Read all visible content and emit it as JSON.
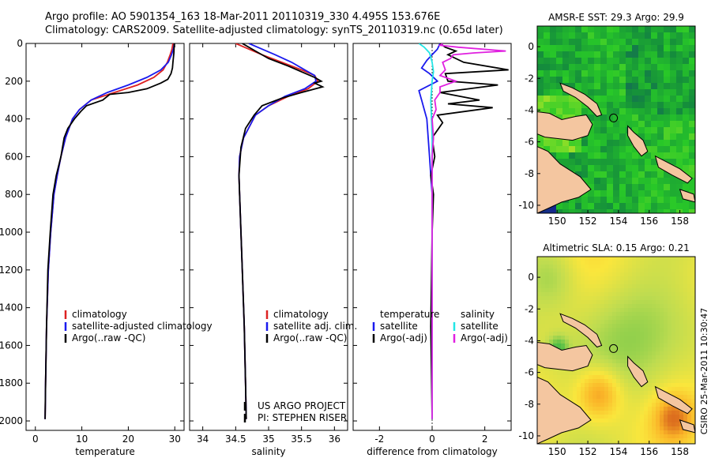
{
  "header": {
    "line1": "Argo profile: AO 5901354_163 18-Mar-2011 20110319_330 4.495S 153.676E",
    "line2": "Climatology: CARS2009. Satellite-adjusted climatology: synTS_20110319.nc (0.65d later)"
  },
  "colors": {
    "climatology": "#dd2222",
    "satellite": "#1a1aee",
    "argo": "#000000",
    "sat_diff_salinity": "#22e6e6",
    "argo_diff_salinity": "#e020e0",
    "land": "#f4c6a0"
  },
  "chart_data": [
    {
      "type": "line",
      "xlabel": "temperature",
      "xlim": [
        -2,
        32
      ],
      "ylim": [
        2050,
        0
      ],
      "xticks": [
        0,
        10,
        20,
        30
      ],
      "yticks": [
        0,
        200,
        400,
        600,
        800,
        1000,
        1200,
        1400,
        1600,
        1800,
        2000
      ],
      "legend": [
        "climatology",
        "satellite-adjusted climatology",
        "Argo(..raw -QC)"
      ],
      "series": [
        {
          "name": "climatology",
          "color": "#dd2222",
          "x": [
            29.6,
            29.4,
            29.0,
            28.4,
            27.5,
            25.5,
            22.0,
            17.0,
            12.0,
            9.5,
            8.0,
            6.5,
            5.5,
            4.7,
            4.0,
            3.3,
            2.8,
            2.4,
            2.2,
            2.1
          ],
          "y": [
            0,
            30,
            60,
            100,
            140,
            180,
            220,
            260,
            300,
            350,
            400,
            500,
            600,
            700,
            800,
            1000,
            1200,
            1500,
            1800,
            1990
          ]
        },
        {
          "name": "satellite-adjusted climatology",
          "color": "#1a1aee",
          "x": [
            29.9,
            29.7,
            29.3,
            28.6,
            27.0,
            24.0,
            20.0,
            15.5,
            12.0,
            9.5,
            8.0,
            6.5,
            5.5,
            4.7,
            4.0,
            3.3,
            2.8,
            2.4,
            2.2,
            2.1
          ],
          "y": [
            0,
            30,
            60,
            100,
            140,
            180,
            220,
            260,
            300,
            350,
            400,
            500,
            600,
            700,
            800,
            1000,
            1200,
            1500,
            1800,
            1990
          ]
        },
        {
          "name": "Argo(..raw -QC)",
          "color": "#000000",
          "x": [
            29.9,
            29.8,
            29.6,
            29.5,
            29.2,
            28.5,
            27.0,
            24.0,
            20.0,
            16.0,
            14.5,
            11.0,
            9.8,
            8.4,
            7.0,
            6.2,
            5.5,
            4.5,
            3.8,
            3.2,
            2.7,
            2.4,
            2.2,
            2.1
          ],
          "y": [
            0,
            50,
            100,
            130,
            160,
            190,
            210,
            240,
            260,
            270,
            300,
            330,
            360,
            400,
            450,
            500,
            600,
            700,
            800,
            1000,
            1200,
            1500,
            1800,
            1990
          ]
        }
      ]
    },
    {
      "type": "line",
      "xlabel": "salinity",
      "xlim": [
        33.8,
        36.2
      ],
      "ylim": [
        2050,
        0
      ],
      "xticks": [
        34,
        34.5,
        35,
        35.5,
        36
      ],
      "legend": [
        "climatology",
        "satellite adj. clim.",
        "Argo(..raw -QC)"
      ],
      "annotation": [
        "US ARGO PROJECT",
        "PI: STEPHEN RISER"
      ],
      "series": [
        {
          "name": "climatology",
          "color": "#dd2222",
          "x": [
            34.5,
            34.7,
            34.9,
            35.2,
            35.5,
            35.7,
            35.75,
            35.6,
            35.3,
            35.0,
            34.8,
            34.62,
            34.56,
            34.55,
            34.56,
            34.58,
            34.6,
            34.63,
            34.65,
            34.66
          ],
          "y": [
            0,
            30,
            60,
            100,
            140,
            170,
            200,
            240,
            280,
            330,
            380,
            500,
            600,
            700,
            800,
            1000,
            1200,
            1500,
            1800,
            1990
          ]
        },
        {
          "name": "satellite adj. clim.",
          "color": "#1a1aee",
          "x": [
            34.7,
            34.9,
            35.1,
            35.35,
            35.55,
            35.7,
            35.72,
            35.55,
            35.25,
            35.0,
            34.8,
            34.62,
            34.56,
            34.55,
            34.56,
            34.58,
            34.6,
            34.63,
            34.65,
            34.66
          ],
          "y": [
            0,
            30,
            60,
            100,
            140,
            170,
            200,
            240,
            280,
            330,
            380,
            500,
            600,
            700,
            800,
            1000,
            1200,
            1500,
            1800,
            1990
          ]
        },
        {
          "name": "Argo(..raw -QC)",
          "color": "#000000",
          "x": [
            34.6,
            34.8,
            35.0,
            35.3,
            35.5,
            35.7,
            35.8,
            35.7,
            35.82,
            35.5,
            35.2,
            34.9,
            34.78,
            34.65,
            34.58,
            34.55,
            34.56,
            34.58,
            34.6,
            34.63,
            34.65,
            34.66
          ],
          "y": [
            0,
            40,
            80,
            120,
            150,
            180,
            200,
            210,
            230,
            260,
            290,
            330,
            380,
            450,
            550,
            700,
            800,
            1000,
            1200,
            1500,
            1800,
            1990
          ]
        }
      ]
    },
    {
      "type": "line",
      "xlabel": "difference from climatology",
      "xlim": [
        -3,
        3
      ],
      "ylim": [
        2050,
        0
      ],
      "xticks": [
        -2,
        0,
        2
      ],
      "legend_titles": [
        "temperature",
        "salinity"
      ],
      "legend": [
        "satellite",
        "Argo(-adj)",
        "satellite",
        "Argo(-adj)"
      ],
      "series": [
        {
          "name": "satellite",
          "group": "temperature",
          "color": "#1a1aee",
          "x": [
            0.3,
            0.2,
            0.0,
            -0.2,
            -0.4,
            -0.1,
            0.2,
            -0.5,
            -0.4,
            -0.3,
            -0.2,
            -0.15,
            -0.1,
            -0.05,
            0.0,
            0.0,
            0.0,
            0.0,
            0.0
          ],
          "y": [
            0,
            30,
            60,
            90,
            130,
            160,
            200,
            250,
            300,
            350,
            400,
            500,
            600,
            700,
            800,
            1000,
            1200,
            1500,
            1990
          ]
        },
        {
          "name": "Argo(-adj)",
          "group": "temperature",
          "color": "#000000",
          "x": [
            0.3,
            0.5,
            0.9,
            0.6,
            1.2,
            2.9,
            0.5,
            0.6,
            2.5,
            0.3,
            1.8,
            0.6,
            2.3,
            0.2,
            0.4,
            0.0,
            0.1,
            -0.05,
            0.05,
            0.0,
            -0.05,
            0.0
          ],
          "y": [
            0,
            20,
            40,
            60,
            100,
            140,
            160,
            200,
            220,
            260,
            300,
            320,
            340,
            380,
            420,
            500,
            600,
            700,
            800,
            1000,
            1500,
            1990
          ]
        },
        {
          "name": "satellite",
          "group": "salinity",
          "color": "#22e6e6",
          "x": [
            -0.5,
            -0.3,
            -0.1,
            0.0,
            0.05,
            0.0,
            -0.05,
            0.0,
            0.0,
            0.0
          ],
          "y": [
            0,
            20,
            50,
            100,
            150,
            200,
            300,
            500,
            1000,
            1990
          ]
        },
        {
          "name": "Argo(-adj)",
          "group": "salinity",
          "color": "#e020e0",
          "x": [
            0.4,
            0.3,
            1.0,
            2.8,
            1.6,
            0.8,
            0.7,
            0.4,
            0.5,
            0.3,
            0.9,
            0.3,
            0.3,
            0.1,
            0.15,
            0.0,
            0.05,
            0.0,
            0.0,
            0.0,
            0.0
          ],
          "y": [
            0,
            10,
            20,
            40,
            50,
            60,
            80,
            100,
            140,
            170,
            200,
            230,
            260,
            300,
            350,
            400,
            500,
            600,
            800,
            1000,
            1990
          ]
        }
      ]
    },
    {
      "type": "heatmap",
      "title": "AMSR-E SST: 29.3 Argo: 29.9",
      "xlim": [
        148.7,
        159
      ],
      "ylim": [
        -10.5,
        1.3
      ],
      "xticks": [
        150,
        152,
        154,
        156,
        158
      ],
      "yticks": [
        0,
        -2,
        -4,
        -6,
        -8,
        -10
      ],
      "argo_position": {
        "lon": 153.676,
        "lat": -4.495
      }
    },
    {
      "type": "heatmap",
      "title": "Altimetric SLA: 0.15 Argo: 0.21",
      "xlim": [
        148.7,
        159
      ],
      "ylim": [
        -10.5,
        1.3
      ],
      "xticks": [
        150,
        152,
        154,
        156,
        158
      ],
      "yticks": [
        0,
        -2,
        -4,
        -6,
        -8,
        -10
      ],
      "argo_position": {
        "lon": 153.676,
        "lat": -4.495
      }
    }
  ],
  "footer": {
    "credit": "CSIRO 25-Mar-2011 10:30:47"
  }
}
